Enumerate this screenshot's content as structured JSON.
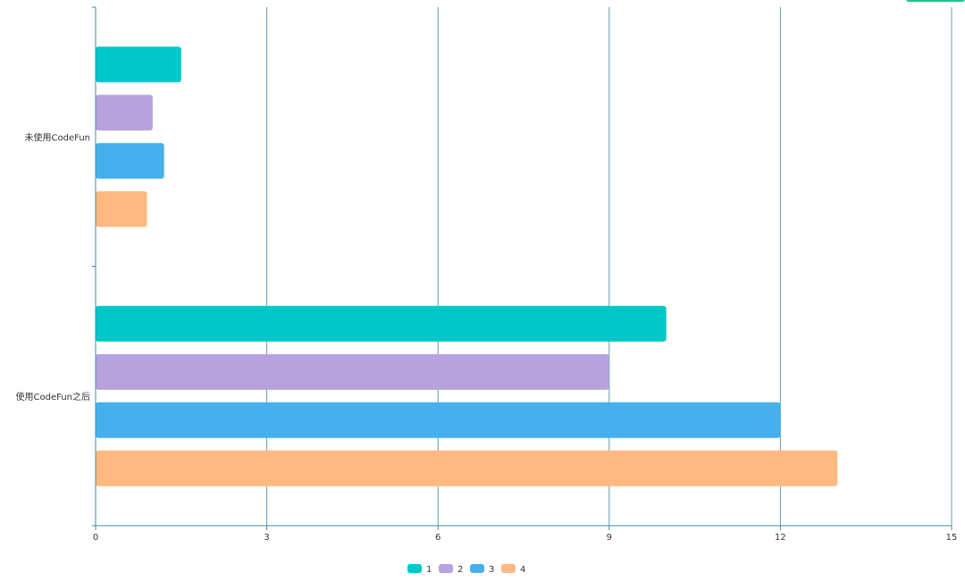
{
  "chart_data": {
    "type": "bar",
    "orientation": "horizontal",
    "title": "",
    "xlabel": "",
    "ylabel": "",
    "categories": [
      "未使用CodeFun",
      "使用CodeFun之后"
    ],
    "series": [
      {
        "name": "1",
        "values": [
          1.5,
          10
        ],
        "color": "#00C8C8"
      },
      {
        "name": "2",
        "values": [
          1.0,
          9
        ],
        "color": "#B6A2DE"
      },
      {
        "name": "3",
        "values": [
          1.2,
          12
        ],
        "color": "#46B0ED"
      },
      {
        "name": "4",
        "values": [
          0.9,
          13
        ],
        "color": "#FFB980"
      }
    ],
    "xlim": [
      0,
      15
    ],
    "xticks": [
      0,
      3,
      6,
      9,
      12,
      15
    ],
    "grid": "vertical",
    "legend_position": "bottom-center"
  },
  "colors": {
    "axis": "#3E8DA1",
    "grid": "#3E8DA1",
    "label_text": "#333333",
    "tick_text": "#333333",
    "top_accent": "#1FC48D"
  }
}
